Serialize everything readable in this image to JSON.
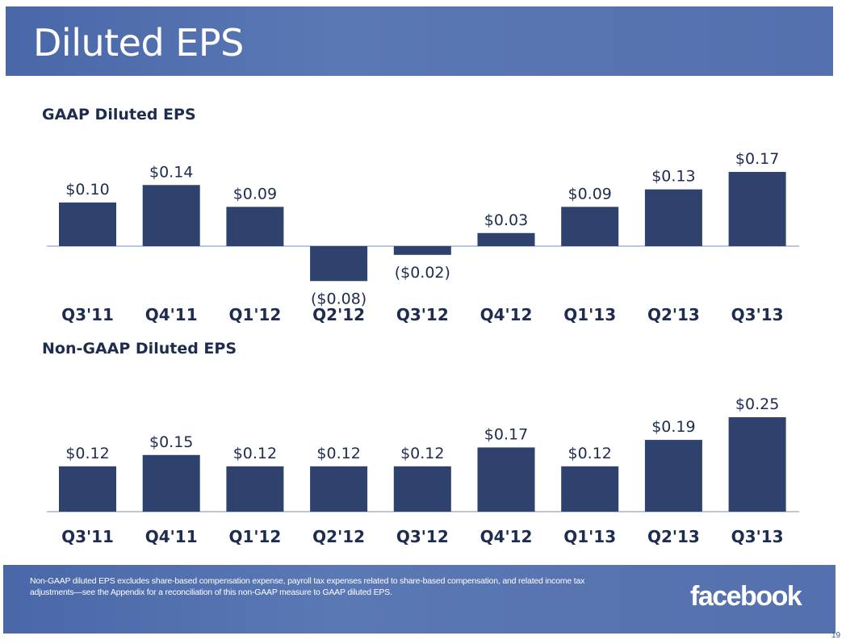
{
  "header": {
    "title": "Diluted EPS"
  },
  "chart_data": [
    {
      "type": "bar",
      "title": "GAAP Diluted EPS",
      "categories": [
        "Q3'11",
        "Q4'11",
        "Q1'12",
        "Q2'12",
        "Q3'12",
        "Q4'12",
        "Q1'13",
        "Q2'13",
        "Q3'13"
      ],
      "values": [
        0.1,
        0.14,
        0.09,
        -0.08,
        -0.02,
        0.03,
        0.09,
        0.13,
        0.17
      ],
      "labels": [
        "$0.10",
        "$0.14",
        "$0.09",
        "($0.08)",
        "($0.02)",
        "$0.03",
        "$0.09",
        "$0.13",
        "$0.17"
      ],
      "bar_color": "#2e426d"
    },
    {
      "type": "bar",
      "title": "Non-GAAP Diluted EPS",
      "categories": [
        "Q3'11",
        "Q4'11",
        "Q1'12",
        "Q2'12",
        "Q3'12",
        "Q4'12",
        "Q1'13",
        "Q2'13",
        "Q3'13"
      ],
      "values": [
        0.12,
        0.15,
        0.12,
        0.12,
        0.12,
        0.17,
        0.12,
        0.19,
        0.25
      ],
      "labels": [
        "$0.12",
        "$0.15",
        "$0.12",
        "$0.12",
        "$0.12",
        "$0.17",
        "$0.12",
        "$0.19",
        "$0.25"
      ],
      "bar_color": "#2e426d"
    }
  ],
  "footer": {
    "note": "Non-GAAP diluted EPS excludes share-based compensation expense, payroll tax expenses related to share-based compensation, and related income tax adjustments—see the Appendix for a reconciliation of this non-GAAP measure to GAAP diluted EPS.",
    "logo": "facebook",
    "page_number": "19"
  }
}
